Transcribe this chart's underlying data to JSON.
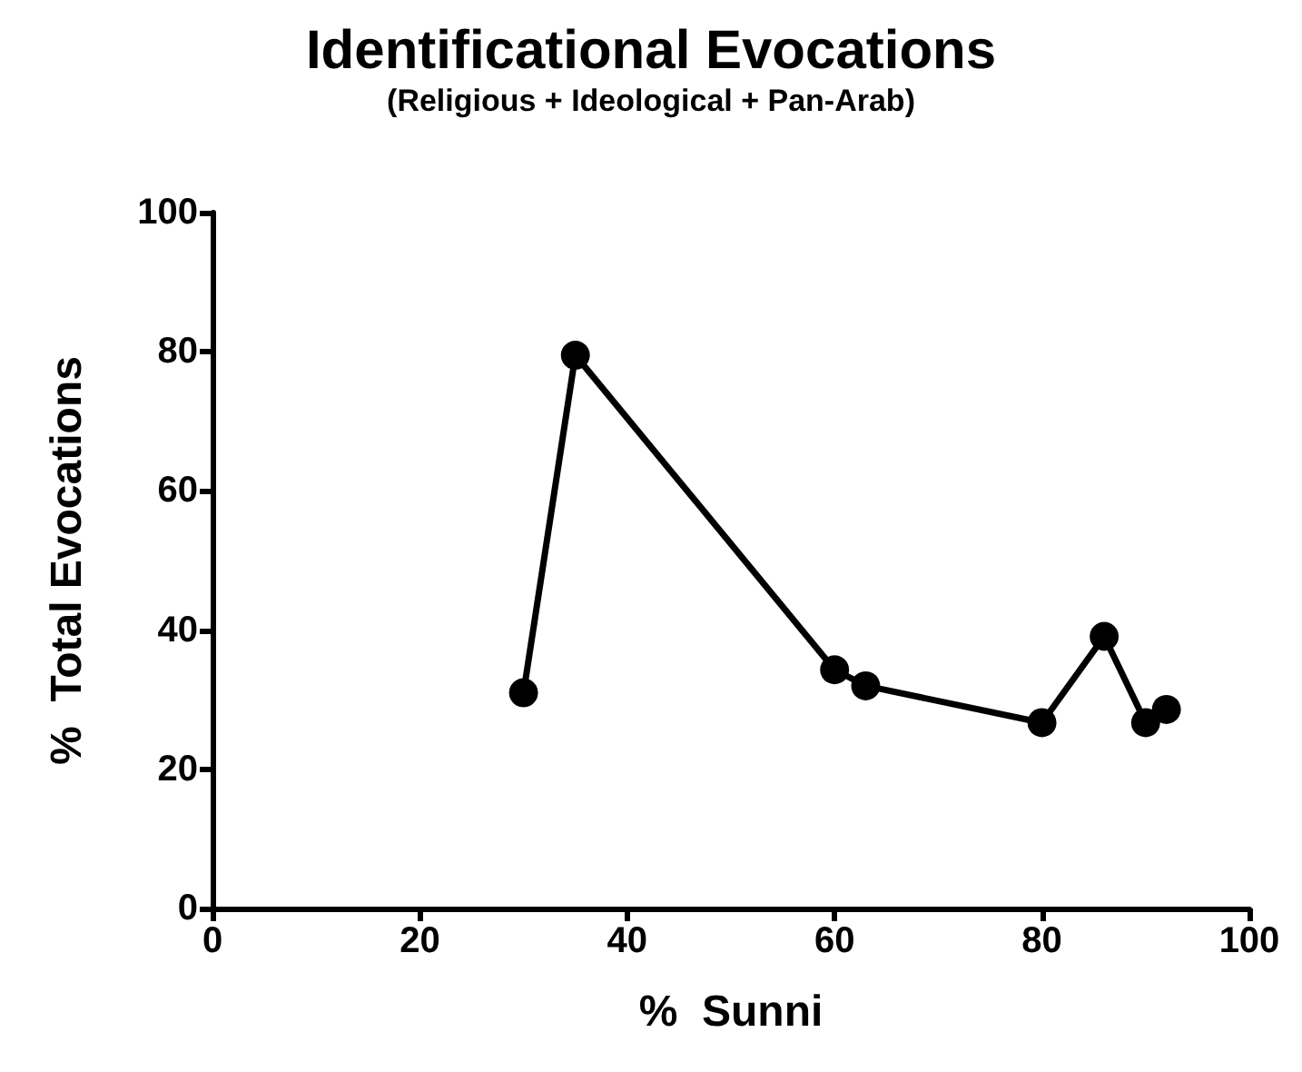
{
  "chart_data": {
    "type": "line",
    "title": "Identificational Evocations",
    "subtitle": "(Religious + Ideological + Pan-Arab)",
    "xlabel": "%  Sunni",
    "ylabel": "%  Total Evocations",
    "x": [
      30,
      35,
      60,
      63,
      80,
      86,
      90,
      92
    ],
    "series": [
      {
        "color": "#000000",
        "values": [
          31,
          79.5,
          34.3,
          32,
          26.7,
          39.1,
          26.7,
          28.6
        ]
      }
    ],
    "xlim": [
      0,
      100
    ],
    "xticks": [
      0,
      20,
      40,
      60,
      80,
      100
    ],
    "ylim": [
      0,
      100
    ],
    "yticks": [
      0,
      20,
      40,
      60,
      80,
      100
    ],
    "grid": false,
    "marker": "circle",
    "line_style": "solid"
  }
}
